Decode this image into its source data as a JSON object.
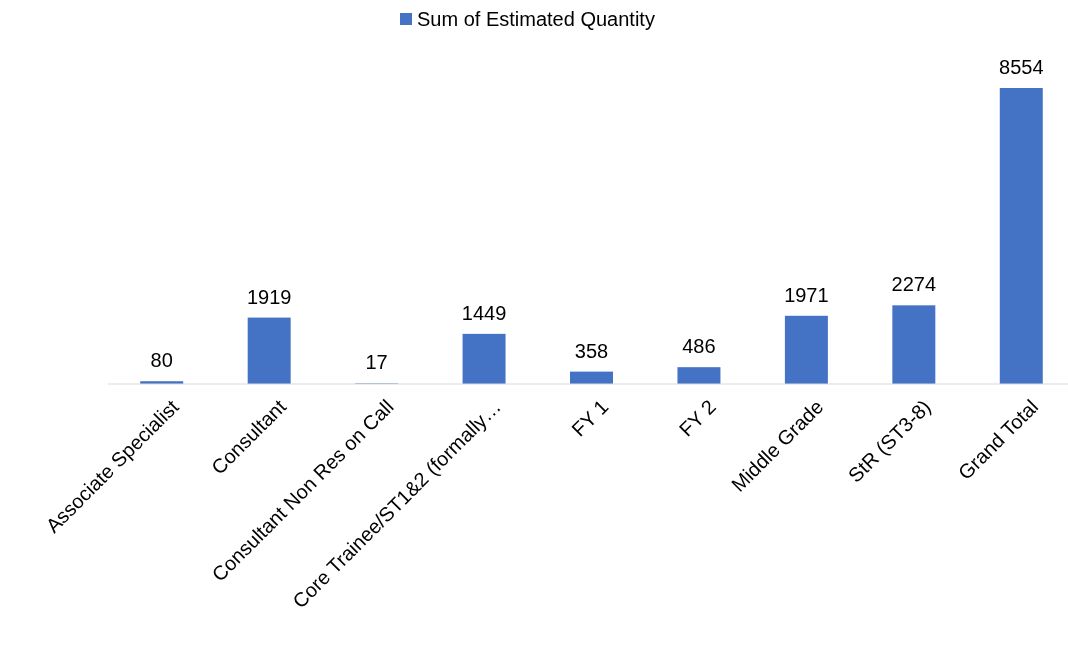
{
  "chart_data": {
    "type": "bar",
    "categories": [
      "Associate Specialist",
      "Consultant",
      "Consultant Non Res on Call",
      "Core Trainee/ST1&2 (formally…",
      "FY 1",
      "FY 2",
      "Middle Grade",
      "StR (ST3-8)",
      "Grand Total"
    ],
    "series": [
      {
        "name": "Sum of Estimated Quantity",
        "color": "#4472c4",
        "values": [
          80,
          1919,
          17,
          1449,
          358,
          486,
          1971,
          2274,
          8554
        ]
      }
    ],
    "data_labels": true,
    "legend": "top"
  }
}
